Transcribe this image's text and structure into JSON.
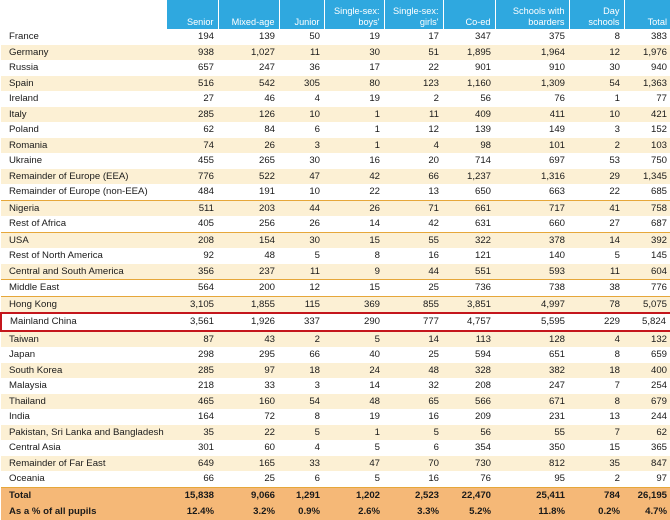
{
  "headers": [
    "",
    "Senior",
    "Mixed-age",
    "Junior",
    "Single-sex: boys'",
    "Single-sex: girls'",
    "Co-ed",
    "Schools with boarders",
    "Day schools",
    "Total"
  ],
  "rows": [
    {
      "style": "w",
      "cells": [
        "France",
        "194",
        "139",
        "50",
        "19",
        "17",
        "347",
        "375",
        "8",
        "383"
      ]
    },
    {
      "style": "y",
      "cells": [
        "Germany",
        "938",
        "1,027",
        "11",
        "30",
        "51",
        "1,895",
        "1,964",
        "12",
        "1,976"
      ]
    },
    {
      "style": "w",
      "cells": [
        "Russia",
        "657",
        "247",
        "36",
        "17",
        "22",
        "901",
        "910",
        "30",
        "940"
      ]
    },
    {
      "style": "y",
      "cells": [
        "Spain",
        "516",
        "542",
        "305",
        "80",
        "123",
        "1,160",
        "1,309",
        "54",
        "1,363"
      ]
    },
    {
      "style": "w",
      "cells": [
        "Ireland",
        "27",
        "46",
        "4",
        "19",
        "2",
        "56",
        "76",
        "1",
        "77"
      ]
    },
    {
      "style": "y",
      "cells": [
        "Italy",
        "285",
        "126",
        "10",
        "1",
        "11",
        "409",
        "411",
        "10",
        "421"
      ]
    },
    {
      "style": "w",
      "cells": [
        "Poland",
        "62",
        "84",
        "6",
        "1",
        "12",
        "139",
        "149",
        "3",
        "152"
      ]
    },
    {
      "style": "y",
      "cells": [
        "Romania",
        "74",
        "26",
        "3",
        "1",
        "4",
        "98",
        "101",
        "2",
        "103"
      ]
    },
    {
      "style": "w",
      "cells": [
        "Ukraine",
        "455",
        "265",
        "30",
        "16",
        "20",
        "714",
        "697",
        "53",
        "750"
      ]
    },
    {
      "style": "y",
      "cells": [
        "Remainder of Europe (EEA)",
        "776",
        "522",
        "47",
        "42",
        "66",
        "1,237",
        "1,316",
        "29",
        "1,345"
      ]
    },
    {
      "style": "w",
      "cells": [
        "Remainder of Europe (non-EEA)",
        "484",
        "191",
        "10",
        "22",
        "13",
        "650",
        "663",
        "22",
        "685"
      ]
    },
    {
      "style": "y g1",
      "cells": [
        "Nigeria",
        "511",
        "203",
        "44",
        "26",
        "71",
        "661",
        "717",
        "41",
        "758"
      ]
    },
    {
      "style": "w",
      "cells": [
        "Rest of Africa",
        "405",
        "256",
        "26",
        "14",
        "42",
        "631",
        "660",
        "27",
        "687"
      ]
    },
    {
      "style": "y g1",
      "cells": [
        "USA",
        "208",
        "154",
        "30",
        "15",
        "55",
        "322",
        "378",
        "14",
        "392"
      ]
    },
    {
      "style": "w",
      "cells": [
        "Rest of North America",
        "92",
        "48",
        "5",
        "8",
        "16",
        "121",
        "140",
        "5",
        "145"
      ]
    },
    {
      "style": "y",
      "cells": [
        "Central and South America",
        "356",
        "237",
        "11",
        "9",
        "44",
        "551",
        "593",
        "11",
        "604"
      ]
    },
    {
      "style": "w g1",
      "cells": [
        "Middle East",
        "564",
        "200",
        "12",
        "15",
        "25",
        "736",
        "738",
        "38",
        "776"
      ]
    },
    {
      "style": "y g1",
      "cells": [
        "Hong Kong",
        "3,105",
        "1,855",
        "115",
        "369",
        "855",
        "3,851",
        "4,997",
        "78",
        "5,075"
      ]
    },
    {
      "style": "sel",
      "cells": [
        "Mainland China",
        "3,561",
        "1,926",
        "337",
        "290",
        "777",
        "4,757",
        "5,595",
        "229",
        "5,824"
      ]
    },
    {
      "style": "y",
      "cells": [
        "Taiwan",
        "87",
        "43",
        "2",
        "5",
        "14",
        "113",
        "128",
        "4",
        "132"
      ]
    },
    {
      "style": "w",
      "cells": [
        "Japan",
        "298",
        "295",
        "66",
        "40",
        "25",
        "594",
        "651",
        "8",
        "659"
      ]
    },
    {
      "style": "y",
      "cells": [
        "South Korea",
        "285",
        "97",
        "18",
        "24",
        "48",
        "328",
        "382",
        "18",
        "400"
      ]
    },
    {
      "style": "w",
      "cells": [
        "Malaysia",
        "218",
        "33",
        "3",
        "14",
        "32",
        "208",
        "247",
        "7",
        "254"
      ]
    },
    {
      "style": "y",
      "cells": [
        "Thailand",
        "465",
        "160",
        "54",
        "48",
        "65",
        "566",
        "671",
        "8",
        "679"
      ]
    },
    {
      "style": "w",
      "cells": [
        "India",
        "164",
        "72",
        "8",
        "19",
        "16",
        "209",
        "231",
        "13",
        "244"
      ]
    },
    {
      "style": "y",
      "cells": [
        "Pakistan, Sri Lanka and Bangladesh",
        "35",
        "22",
        "5",
        "1",
        "5",
        "56",
        "55",
        "7",
        "62"
      ]
    },
    {
      "style": "w",
      "cells": [
        "Central Asia",
        "301",
        "60",
        "4",
        "5",
        "6",
        "354",
        "350",
        "15",
        "365"
      ]
    },
    {
      "style": "y",
      "cells": [
        "Remainder of Far East",
        "649",
        "165",
        "33",
        "47",
        "70",
        "730",
        "812",
        "35",
        "847"
      ]
    },
    {
      "style": "w",
      "cells": [
        "Oceania",
        "66",
        "25",
        "6",
        "5",
        "16",
        "76",
        "95",
        "2",
        "97"
      ]
    }
  ],
  "totals": [
    {
      "cells": [
        "Total",
        "15,838",
        "9,066",
        "1,291",
        "1,202",
        "2,523",
        "22,470",
        "25,411",
        "784",
        "26,195"
      ]
    },
    {
      "cells": [
        "As a % of all pupils",
        "12.4%",
        "3.2%",
        "0.9%",
        "2.6%",
        "3.3%",
        "5.2%",
        "11.8%",
        "0.2%",
        "4.7%"
      ]
    }
  ],
  "colors": {
    "header": "#2fa8df",
    "band": "#fcf0d4",
    "total": "#f5b877",
    "highlight_border": "#c4161c",
    "divider": "#e6a73a"
  }
}
